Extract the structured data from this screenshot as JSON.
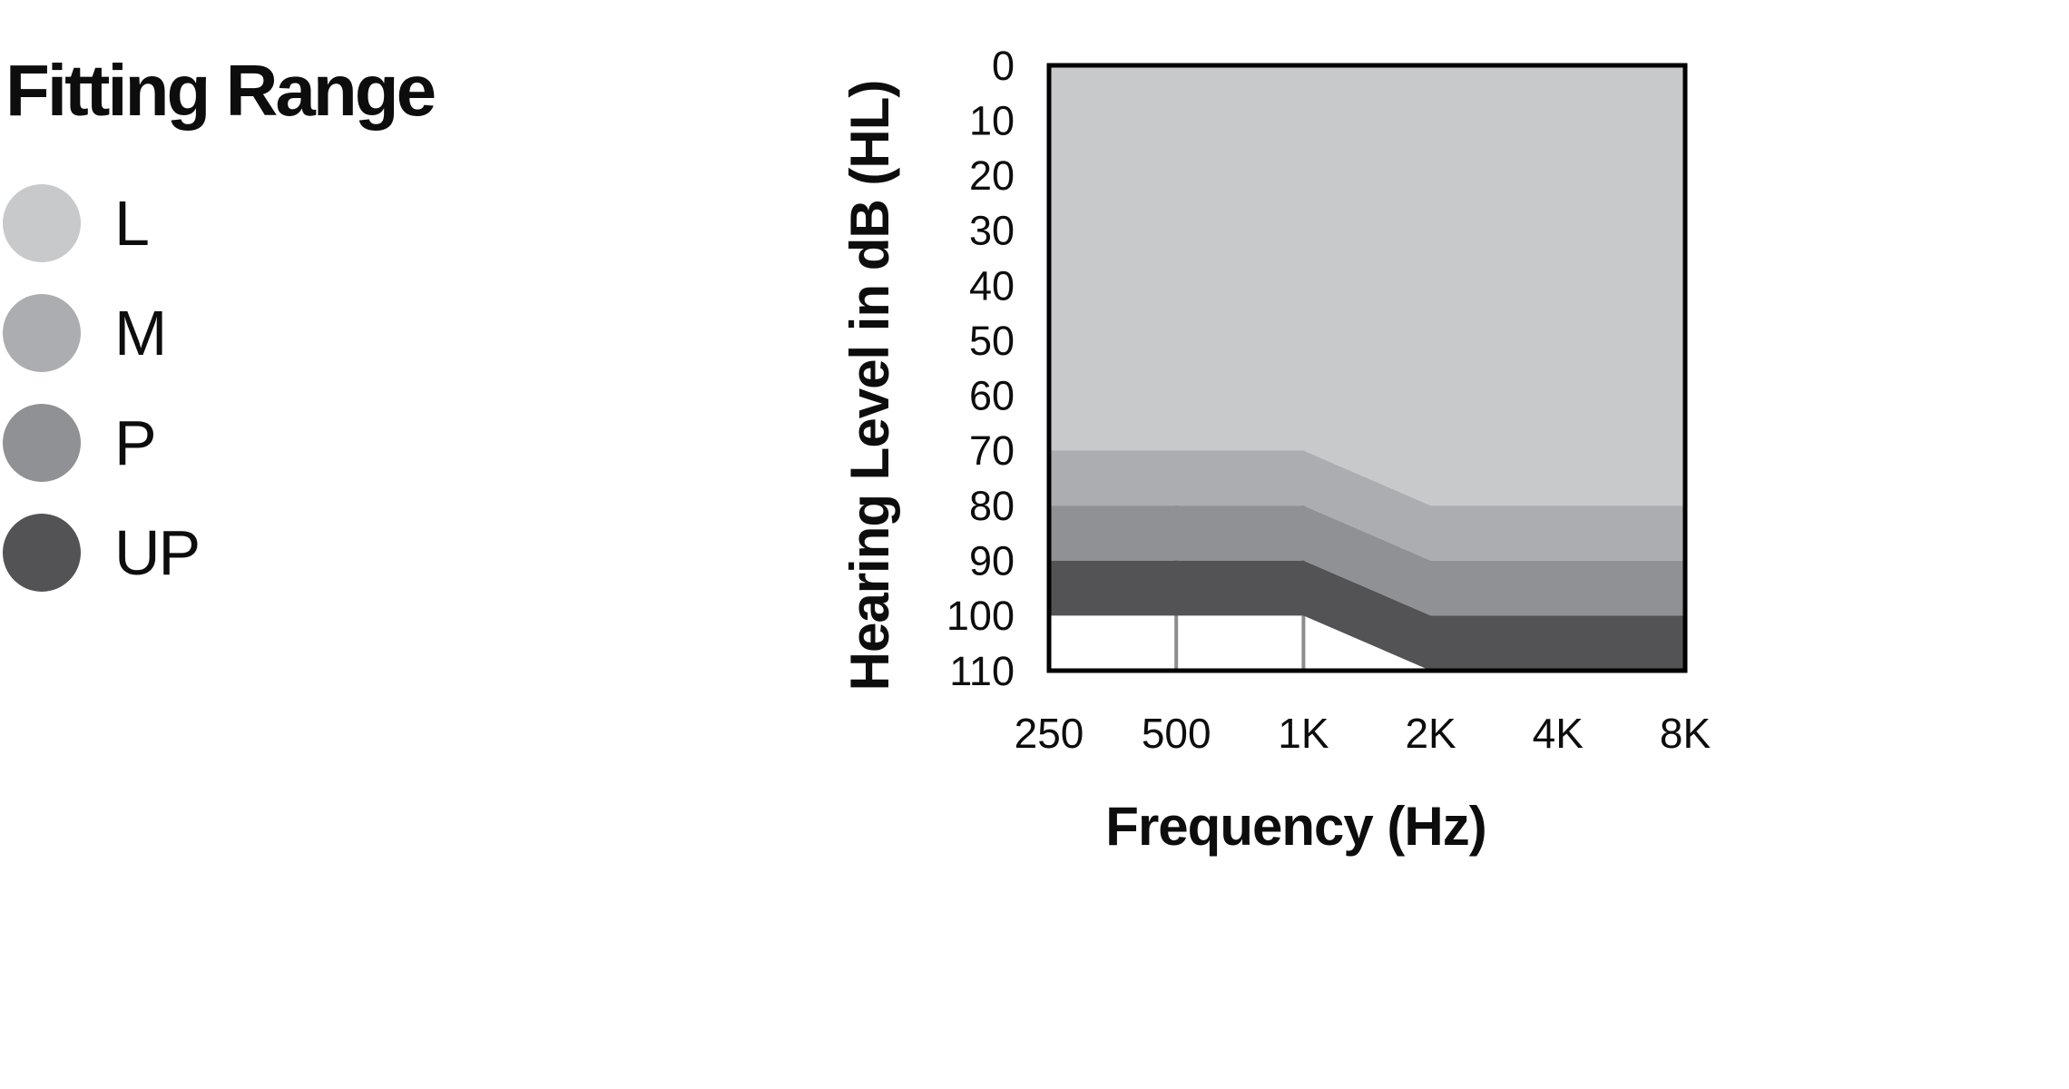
{
  "title": "Fitting Range",
  "legend": {
    "items": [
      {
        "id": "l",
        "label": "L",
        "color": "#c8c9cb"
      },
      {
        "id": "m",
        "label": "M",
        "color": "#abadb0"
      },
      {
        "id": "p",
        "label": "P",
        "color": "#909194"
      },
      {
        "id": "up",
        "label": "UP",
        "color": "#535355"
      }
    ]
  },
  "chart_data": {
    "type": "area",
    "title": "Fitting Range",
    "xlabel": "Frequency (Hz)",
    "ylabel": "Hearing Level in dB (HL)",
    "x_categories": [
      "250",
      "500",
      "1K",
      "2K",
      "4K",
      "8K"
    ],
    "y_ticks": [
      0,
      10,
      20,
      30,
      40,
      50,
      60,
      70,
      80,
      90,
      100,
      110
    ],
    "ylim": [
      0,
      110
    ],
    "y_axis_inverted_downward": true,
    "legend_position": "left",
    "grid": {
      "vertical_lines_at": [
        "500",
        "1K"
      ],
      "visible_only_below_fill": true,
      "color": "#8d8d8d"
    },
    "plot_border_color": "#000000",
    "unfilled_region_color": "#ffffff",
    "series": [
      {
        "name": "L",
        "color": "#c8c9cb",
        "upper_db": [
          0,
          0,
          0,
          0,
          0,
          0
        ],
        "lower_db": [
          70,
          70,
          70,
          80,
          80,
          80
        ]
      },
      {
        "name": "M",
        "color": "#abadb0",
        "upper_db": [
          70,
          70,
          70,
          80,
          80,
          80
        ],
        "lower_db": [
          80,
          80,
          80,
          90,
          90,
          90
        ]
      },
      {
        "name": "P",
        "color": "#909194",
        "upper_db": [
          80,
          80,
          80,
          90,
          90,
          90
        ],
        "lower_db": [
          90,
          90,
          90,
          100,
          100,
          100
        ]
      },
      {
        "name": "UP",
        "color": "#535355",
        "upper_db": [
          90,
          90,
          90,
          100,
          100,
          100
        ],
        "lower_db": [
          100,
          100,
          100,
          110,
          110,
          110
        ]
      }
    ]
  }
}
